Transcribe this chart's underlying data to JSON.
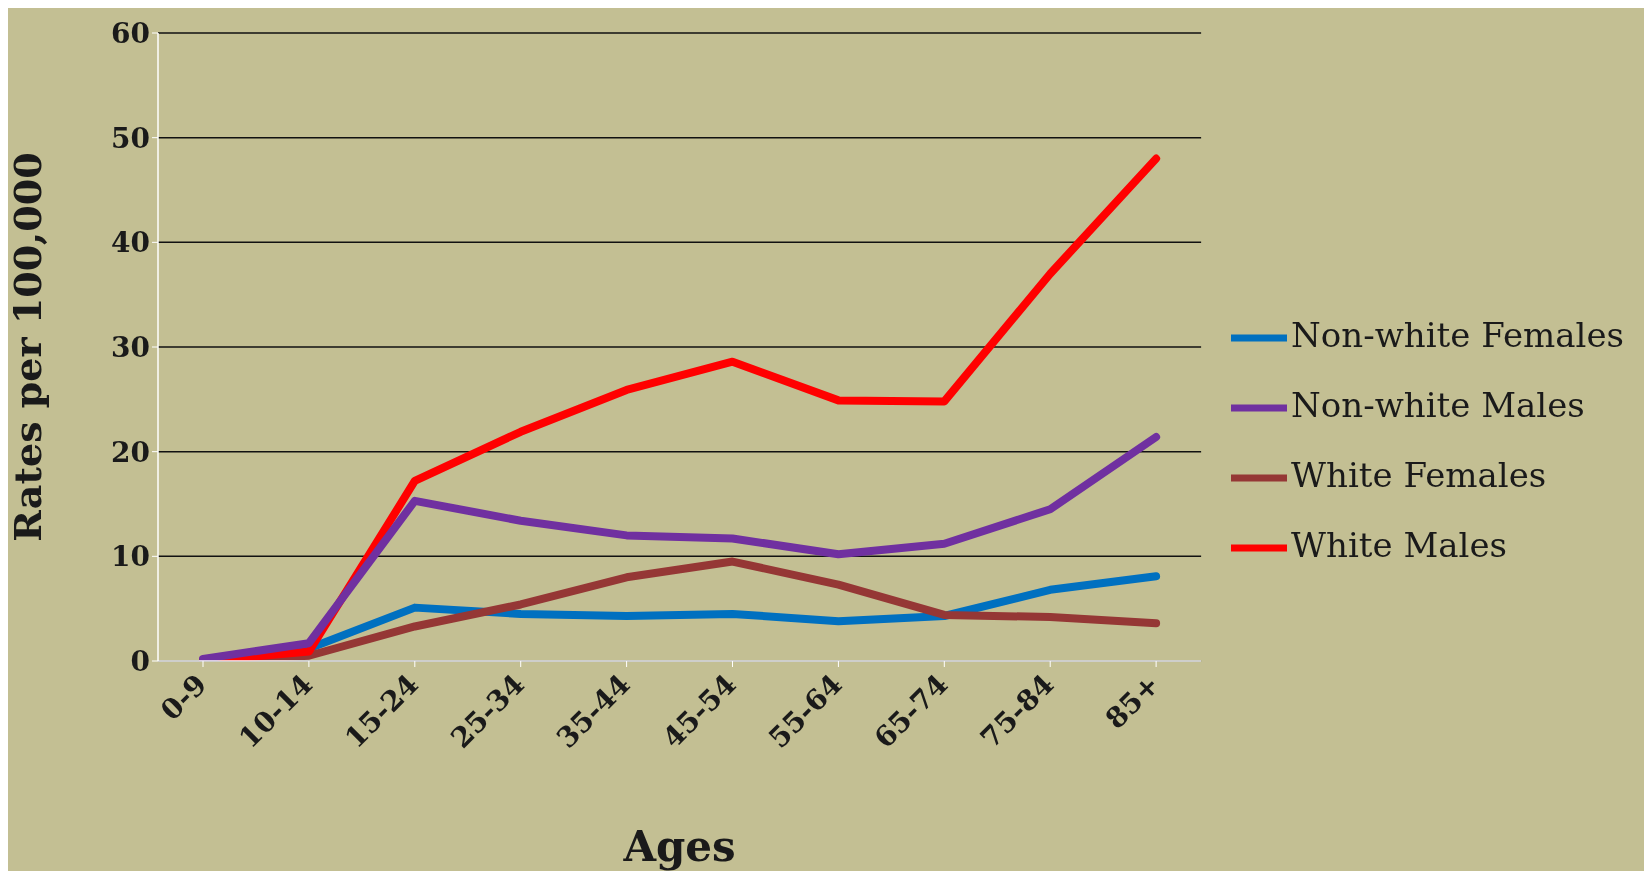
{
  "chart_data": {
    "type": "line",
    "xlabel": "Ages",
    "ylabel": "Rates per 100,000",
    "categories": [
      "0-9",
      "10-14",
      "15-24",
      "25-34",
      "35-44",
      "45-54",
      "55-64",
      "65-74",
      "75-84",
      "85+"
    ],
    "series": [
      {
        "name": "Non-white Females",
        "color": "#0070c0",
        "values": [
          0,
          1.2,
          5.1,
          4.5,
          4.3,
          4.5,
          3.8,
          4.3,
          6.8,
          8.1
        ]
      },
      {
        "name": "White Females",
        "color": "#953735",
        "values": [
          0,
          0.5,
          3.3,
          5.4,
          8,
          9.5,
          7.3,
          4.4,
          4.2,
          3.6
        ]
      },
      {
        "name": "White Males",
        "color": "#ff0000",
        "values": [
          0,
          0.9,
          17.2,
          21.9,
          25.9,
          28.6,
          24.9,
          24.8,
          37,
          48
        ]
      },
      {
        "name": "Non-white Males",
        "color": "#7030a0",
        "values": [
          0.2,
          1.7,
          15.3,
          13.4,
          12,
          11.7,
          10.2,
          11.2,
          14.5,
          21.4
        ]
      }
    ],
    "ylim": [
      0,
      60
    ],
    "yticks": [
      0,
      10,
      20,
      30,
      40,
      50,
      60
    ],
    "grid": "y",
    "legend": "right",
    "marker": "none",
    "line_style": "solid"
  }
}
